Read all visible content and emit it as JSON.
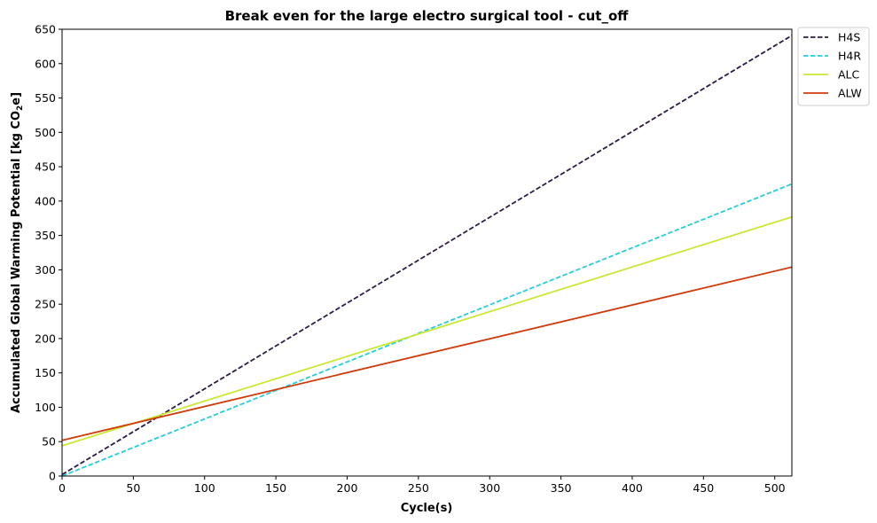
{
  "chart_data": {
    "type": "line",
    "title": "Break even for the large electro surgical tool - cut_off",
    "xlabel": "Cycle(s)",
    "ylabel_main": "Accumulated Global Warming Potential [kg CO",
    "ylabel_sub": "2",
    "ylabel_end": "e]",
    "xlim": [
      0,
      512
    ],
    "ylim": [
      0,
      650
    ],
    "xticks": [
      0,
      50,
      100,
      150,
      200,
      250,
      300,
      350,
      400,
      450,
      500
    ],
    "yticks": [
      0,
      50,
      100,
      150,
      200,
      250,
      300,
      350,
      400,
      450,
      500,
      550,
      600,
      650
    ],
    "grid": false,
    "legend_position": "outside top-right",
    "series": [
      {
        "name": "H4S",
        "color": "#2d1a45",
        "dash": "dashed",
        "x": [
          0,
          512
        ],
        "y": [
          2,
          641
        ]
      },
      {
        "name": "H4R",
        "color": "#28cdd8",
        "dash": "dashed",
        "x": [
          0,
          512
        ],
        "y": [
          0,
          425
        ]
      },
      {
        "name": "ALC",
        "color": "#c9e835",
        "dash": "solid",
        "x": [
          0,
          512
        ],
        "y": [
          44,
          377
        ]
      },
      {
        "name": "ALW",
        "color": "#cf3a0b",
        "dash": "solid",
        "x": [
          0,
          512
        ],
        "y": [
          52,
          304
        ]
      }
    ]
  }
}
